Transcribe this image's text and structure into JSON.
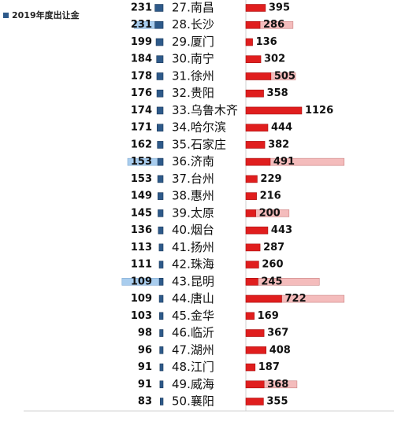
{
  "chart_data": {
    "type": "butterfly",
    "categories": [
      "27.南昌",
      "28.长沙",
      "29.厦门",
      "30.南宁",
      "31.徐州",
      "32.贵阳",
      "33.乌鲁木齐",
      "34.哈尔滨",
      "35.石家庄",
      "36.济南",
      "37.台州",
      "38.惠州",
      "39.太原",
      "40.烟台",
      "41.扬州",
      "42.珠海",
      "43.昆明",
      "44.唐山",
      "45.金华",
      "46.临沂",
      "47.湖州",
      "48.江门",
      "49.威海",
      "50.襄阳"
    ],
    "series": [
      {
        "name": "2019年度出让金",
        "color": "#2e5a8a",
        "side": "left",
        "labeled": true,
        "values": [
          231,
          231,
          199,
          184,
          178,
          176,
          174,
          171,
          162,
          153,
          153,
          149,
          145,
          136,
          113,
          111,
          109,
          109,
          103,
          98,
          96,
          91,
          91,
          83
        ]
      },
      {
        "color": "#a9cdee",
        "side": "left",
        "labeled": false,
        "values": [
          null,
          820,
          null,
          null,
          null,
          null,
          null,
          null,
          null,
          1000,
          null,
          null,
          null,
          null,
          null,
          null,
          1160,
          null,
          null,
          null,
          null,
          null,
          null,
          null
        ]
      },
      {
        "color": "#f4bcbc",
        "side": "right",
        "labeled": false,
        "values": [
          null,
          950,
          null,
          null,
          1000,
          null,
          null,
          null,
          null,
          1980,
          null,
          null,
          870,
          null,
          null,
          null,
          1480,
          1980,
          null,
          null,
          null,
          null,
          1030,
          null
        ]
      },
      {
        "color": "#e01e1e",
        "side": "right",
        "labeled": true,
        "values": [
          395,
          286,
          136,
          302,
          505,
          358,
          1126,
          444,
          382,
          491,
          229,
          216,
          200,
          443,
          287,
          260,
          245,
          722,
          169,
          367,
          408,
          187,
          368,
          355
        ]
      }
    ]
  }
}
